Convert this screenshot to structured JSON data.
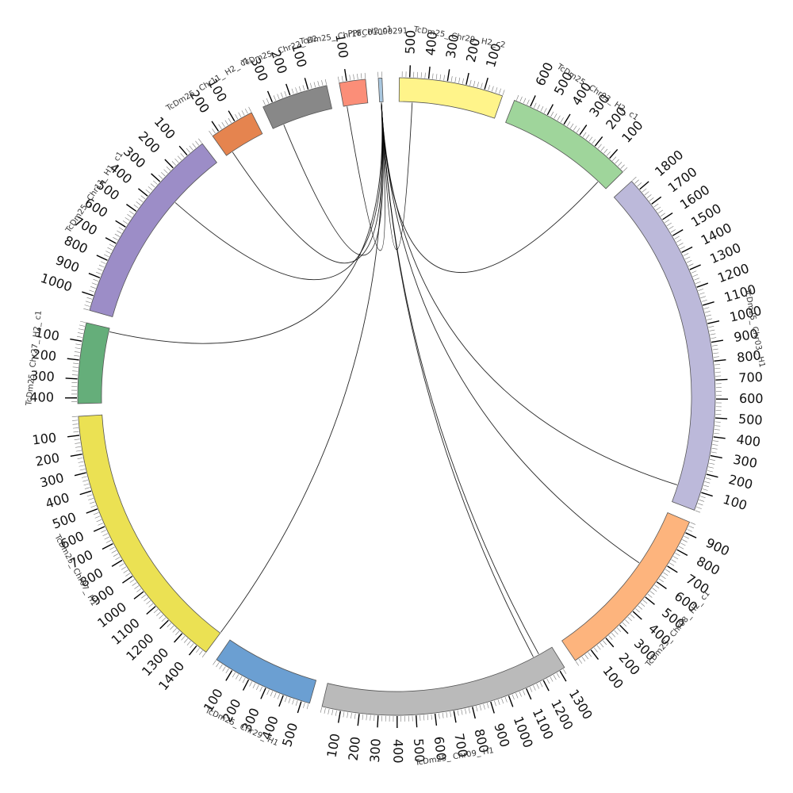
{
  "chart_data": {
    "type": "chord",
    "segments": [
      {
        "name": "TcDm25_ Chr29_ H2_c2",
        "length": 555,
        "color": "#fff48a",
        "ticks": [
          "100",
          "200",
          "300",
          "400",
          "500"
        ]
      },
      {
        "name": "TcDm25_ Chr03_ H2_ c1",
        "length": 690,
        "color": "#9fd59b",
        "ticks": [
          "100",
          "200",
          "300",
          "400",
          "500",
          "600"
        ]
      },
      {
        "name": "TcDm25_ Chr03_ H1",
        "length": 1860,
        "color": "#bcb9da",
        "ticks": [
          "100",
          "200",
          "300",
          "400",
          "500",
          "600",
          "700",
          "800",
          "900",
          "1000",
          "1100",
          "1200",
          "1300",
          "1400",
          "1500",
          "1600",
          "1700",
          "1800"
        ]
      },
      {
        "name": "TcDm25_ Chr08_ H2_ c1",
        "length": 960,
        "color": "#fdb47d",
        "ticks": [
          "100",
          "200",
          "300",
          "400",
          "500",
          "600",
          "700",
          "800",
          "900"
        ]
      },
      {
        "name": "TcDm25_ Chr09_ H1",
        "length": 1330,
        "color": "#bababa",
        "ticks": [
          "100",
          "200",
          "300",
          "400",
          "500",
          "600",
          "700",
          "800",
          "900",
          "1000",
          "1100",
          "1200",
          "1300"
        ]
      },
      {
        "name": "TcDm25_ Chr29_ H1",
        "length": 545,
        "color": "#6b9fd2",
        "ticks": [
          "100",
          "200",
          "300",
          "400",
          "500"
        ]
      },
      {
        "name": "TcDm25_ Chr07_ H1",
        "length": 1460,
        "color": "#ebe153",
        "ticks": [
          "100",
          "200",
          "300",
          "400",
          "500",
          "600",
          "700",
          "800",
          "900",
          "1000",
          "1100",
          "1200",
          "1300",
          "1400"
        ]
      },
      {
        "name": "TcDm25_ Chr27_ H2_ c1",
        "length": 430,
        "color": "#65ae7a",
        "ticks": [
          "100",
          "200",
          "300",
          "400"
        ]
      },
      {
        "name": "TcDm25_ Chr11_ H1_ c1",
        "length": 1080,
        "color": "#9c8dc7",
        "ticks": [
          "100",
          "200",
          "300",
          "400",
          "500",
          "600",
          "700",
          "800",
          "900",
          "1000"
        ]
      },
      {
        "name": "TcDm25_ Chr11_ H2_ c1",
        "length": 240,
        "color": "#e5844f",
        "ticks": [
          "100",
          "200"
        ]
      },
      {
        "name": "TcDm25_ Chr22_ H2",
        "length": 355,
        "color": "#888888",
        "ticks": [
          "100",
          "200",
          "300"
        ]
      },
      {
        "name": "TcDm25_ Chr18_ H2_c1",
        "length": 140,
        "color": "#fb8e78",
        "ticks": [
          "100"
        ]
      },
      {
        "name": "PPFC01000291",
        "length": 20,
        "color": "#a9c7df",
        "ticks": []
      }
    ],
    "links": [
      {
        "from": "PPFC01000291",
        "to": "TcDm25_ Chr29_ H2_c2",
        "to_pos": 480
      },
      {
        "from": "PPFC01000291",
        "to": "TcDm25_ Chr03_ H2_ c1",
        "to_pos": 60
      },
      {
        "from": "PPFC01000291",
        "to": "TcDm25_ Chr03_ H1",
        "to_pos": 100
      },
      {
        "from": "PPFC01000291",
        "to": "TcDm25_ Chr08_ H2_ c1",
        "to_pos": 630
      },
      {
        "from": "PPFC01000291",
        "to": "TcDm25_ Chr09_ H1",
        "to_pos": 1210
      },
      {
        "from": "PPFC01000291",
        "to": "TcDm25_ Chr09_ H1",
        "to_pos": 1245
      },
      {
        "from": "PPFC01000291",
        "to": "TcDm25_ Chr27_ H2_ c1",
        "to_pos": 20
      },
      {
        "from": "PPFC01000291",
        "to": "TcDm25_ Chr07_ H1",
        "to_pos": 1460
      },
      {
        "from": "PPFC01000291",
        "to": "TcDm25_ Chr11_ H1_ c1",
        "to_pos": 330
      },
      {
        "from": "PPFC01000291",
        "to": "TcDm25_ Chr11_ H2_ c1",
        "to_pos": 200
      },
      {
        "from": "PPFC01000291",
        "to": "TcDm25_ Chr22_ H2",
        "to_pos": 290
      },
      {
        "from": "PPFC01000291",
        "to": "TcDm25_ Chr18_ H2_c1",
        "to_pos": 120
      }
    ],
    "tick_interval": 100,
    "link_color": "#000000",
    "title": ""
  }
}
